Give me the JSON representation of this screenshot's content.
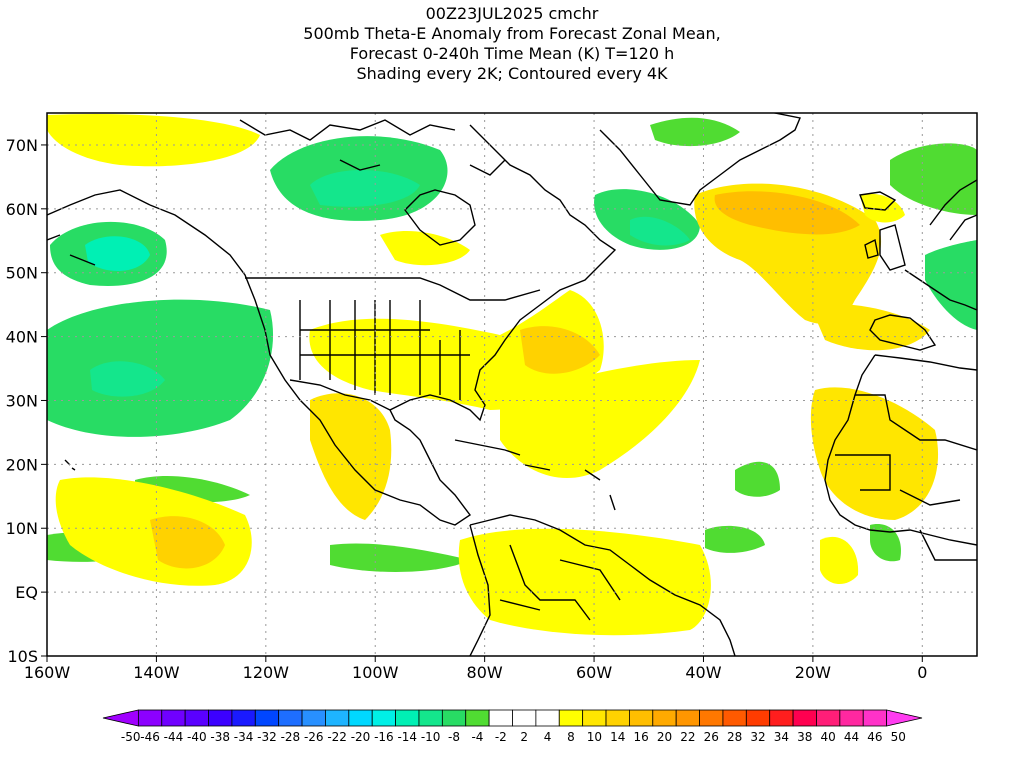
{
  "title_lines": [
    "00Z23JUL2025 cmchr",
    "500mb Theta-E Anomaly from Forecast Zonal Mean,",
    "Forecast 0-240h Time Mean (K) T=120 h",
    "Shading every 2K; Contoured every 4K"
  ],
  "axes": {
    "lon_labels": [
      "160W",
      "140W",
      "120W",
      "100W",
      "80W",
      "60W",
      "40W",
      "20W",
      "0"
    ],
    "lon_values": [
      -160,
      -140,
      -120,
      -100,
      -80,
      -60,
      -40,
      -20,
      0
    ],
    "lat_labels": [
      "70N",
      "60N",
      "50N",
      "40N",
      "30N",
      "20N",
      "10N",
      "EQ",
      "10S"
    ],
    "lat_values": [
      70,
      60,
      50,
      40,
      30,
      20,
      10,
      0,
      -10
    ],
    "lon_range": [
      -160,
      10
    ],
    "lat_range": [
      -10,
      75
    ],
    "grid": "dotted"
  },
  "colorbar": {
    "labels": [
      "-50",
      "-46",
      "-44",
      "-40",
      "-38",
      "-34",
      "-32",
      "-28",
      "-26",
      "-22",
      "-20",
      "-16",
      "-14",
      "-10",
      "-8",
      "-4",
      "-2",
      "2",
      "4",
      "8",
      "10",
      "14",
      "16",
      "20",
      "22",
      "26",
      "28",
      "32",
      "34",
      "38",
      "40",
      "44",
      "46",
      "50"
    ],
    "colors": [
      "#a000ff",
      "#8c00ff",
      "#7000ff",
      "#5a00ff",
      "#3c00ff",
      "#1a1aff",
      "#0046ff",
      "#1e6eff",
      "#2890ff",
      "#1eb4ff",
      "#00d8ff",
      "#00f0e6",
      "#00f0b4",
      "#14e68c",
      "#28dc64",
      "#50dc32",
      "#ffffff",
      "#ffffff",
      "#ffffff",
      "#ffff00",
      "#ffe600",
      "#ffd200",
      "#ffbe00",
      "#ffaa00",
      "#ff9600",
      "#ff7800",
      "#ff5a00",
      "#ff3c00",
      "#ff1e1e",
      "#ff0050",
      "#ff1e78",
      "#ff28a0",
      "#ff32c8",
      "#ff3cf0"
    ]
  }
}
